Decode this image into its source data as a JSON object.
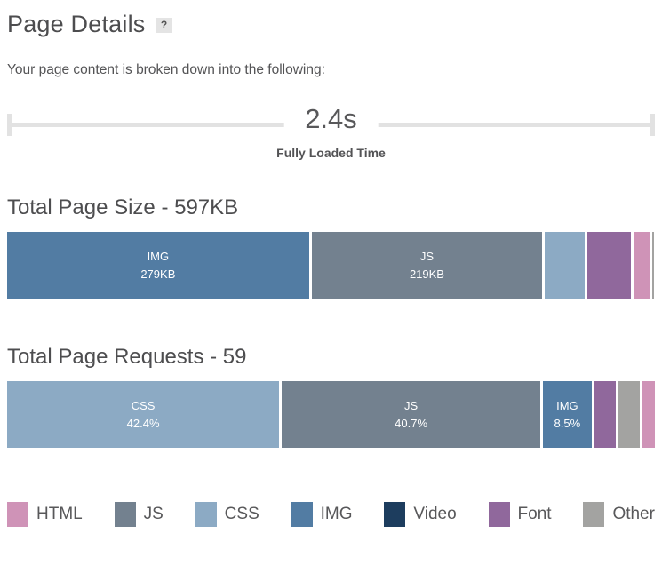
{
  "header": {
    "title": "Page Details",
    "help_label": "?"
  },
  "intro": "Your page content is broken down into the following:",
  "timeline": {
    "value": "2.4s",
    "caption": "Fully Loaded Time"
  },
  "chart_data": [
    {
      "id": "size",
      "type": "bar",
      "title": "Total Page Size - 597KB",
      "total_label": "597KB",
      "segments": [
        {
          "category": "IMG",
          "label": "IMG",
          "value": "279KB",
          "kb": 279,
          "width_pct": 46.6,
          "color": "#527ca3"
        },
        {
          "category": "JS",
          "label": "JS",
          "value": "219KB",
          "kb": 219,
          "width_pct": 35.6,
          "color": "#73818f"
        },
        {
          "category": "CSS",
          "kb_est": 40,
          "width_pct": 6.2,
          "color": "#8caac4"
        },
        {
          "category": "Font",
          "kb_est": 41,
          "width_pct": 6.6,
          "color": "#90689c"
        },
        {
          "category": "HTML",
          "kb_est": 15,
          "width_pct": 2.5,
          "color": "#cf93b7"
        },
        {
          "category": "Other",
          "kb_est": 2,
          "width_pct": 0.3,
          "color": "#a3a3a1"
        }
      ]
    },
    {
      "id": "requests",
      "type": "bar",
      "title": "Total Page Requests - 59",
      "total_label": "59",
      "segments": [
        {
          "category": "CSS",
          "label": "CSS",
          "value": "42.4%",
          "percent": 42.4,
          "count": 25,
          "width_pct": 42.0,
          "color": "#8caac4"
        },
        {
          "category": "JS",
          "label": "JS",
          "value": "40.7%",
          "percent": 40.7,
          "count": 24,
          "width_pct": 39.9,
          "color": "#73818f"
        },
        {
          "category": "IMG",
          "label": "IMG",
          "value": "8.5%",
          "percent": 8.5,
          "count": 5,
          "width_pct": 7.5,
          "color": "#527ca3"
        },
        {
          "category": "Font",
          "percent_est": 3.4,
          "count_est": 2,
          "width_pct": 3.3,
          "color": "#90689c"
        },
        {
          "category": "Other",
          "percent_est": 3.4,
          "count_est": 2,
          "width_pct": 3.3,
          "color": "#a3a3a1"
        },
        {
          "category": "HTML",
          "percent_est": 1.7,
          "count_est": 1,
          "width_pct": 1.9,
          "color": "#cf93b7"
        }
      ]
    }
  ],
  "legend": {
    "items": [
      {
        "label": "HTML",
        "color": "#cf93b7"
      },
      {
        "label": "JS",
        "color": "#73818f"
      },
      {
        "label": "CSS",
        "color": "#8caac4"
      },
      {
        "label": "IMG",
        "color": "#527ca3"
      },
      {
        "label": "Video",
        "color": "#1d3d5e"
      },
      {
        "label": "Font",
        "color": "#90689c"
      },
      {
        "label": "Other",
        "color": "#a3a3a1"
      }
    ]
  }
}
